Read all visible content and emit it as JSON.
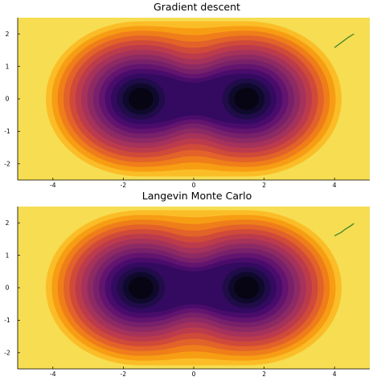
{
  "chart_data": [
    {
      "type": "contour",
      "title": "Gradient descent",
      "xlim": [
        -5,
        5
      ],
      "ylim": [
        -2.5,
        2.5
      ],
      "xticks": [
        -4,
        -2,
        0,
        2,
        4
      ],
      "yticks": [
        -2,
        -1,
        0,
        1,
        2
      ],
      "potential_minima": [
        [
          -1.5,
          0
        ],
        [
          1.5,
          0
        ]
      ],
      "colormap": "inferno",
      "levels": 14,
      "grid": false,
      "path": {
        "color": "#4a8b2c",
        "points": [
          [
            4.0,
            1.58
          ],
          [
            4.2,
            1.74
          ],
          [
            4.4,
            1.9
          ],
          [
            4.55,
            2.0
          ]
        ]
      }
    },
    {
      "type": "contour",
      "title": "Langevin Monte Carlo",
      "xlim": [
        -5,
        5
      ],
      "ylim": [
        -2.5,
        2.5
      ],
      "xticks": [
        -4,
        -2,
        0,
        2,
        4
      ],
      "yticks": [
        -2,
        -1,
        0,
        1,
        2
      ],
      "potential_minima": [
        [
          -1.5,
          0
        ],
        [
          1.5,
          0
        ]
      ],
      "colormap": "inferno",
      "levels": 14,
      "grid": false,
      "path": {
        "color": "#4a8b2c",
        "points": [
          [
            4.0,
            1.6
          ],
          [
            4.18,
            1.7
          ],
          [
            4.3,
            1.8
          ],
          [
            4.45,
            1.9
          ],
          [
            4.55,
            1.98
          ]
        ]
      }
    }
  ]
}
